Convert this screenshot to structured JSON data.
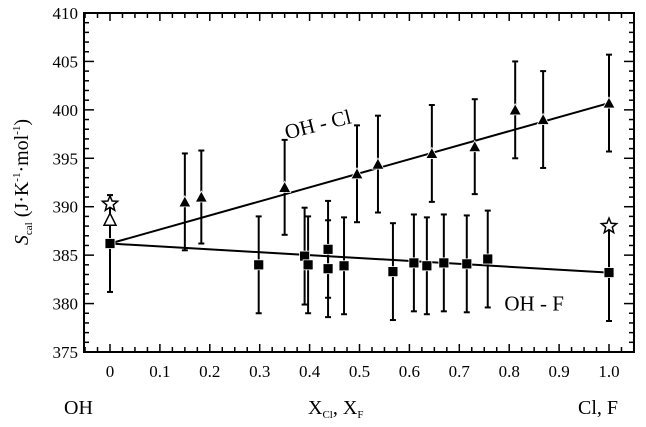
{
  "chart_data": {
    "type": "scatter",
    "title": "",
    "xlabel": "X_Cl, X_F",
    "xlabel_parts": {
      "main1": "X",
      "sub1": "Cl",
      "sep": ", ",
      "main2": "X",
      "sub2": "F"
    },
    "ylabel": "S_cal (J·K^-1·mol^-1)",
    "ylabel_parts": {
      "sym": "S",
      "sub": "cal",
      "pre": " (J·K",
      "sup1": "-1",
      "mid": "·mol",
      "sup2": "-1",
      "post": ")"
    },
    "xlim": [
      0,
      1.0
    ],
    "ylim": [
      375,
      410
    ],
    "x_ticks": [
      "0",
      "0.1",
      "0.2",
      "0.3",
      "0.4",
      "0.5",
      "0.6",
      "0.7",
      "0.8",
      "0.9",
      "1.0"
    ],
    "y_ticks": [
      "375",
      "380",
      "385",
      "390",
      "395",
      "400",
      "405",
      "410"
    ],
    "end_labels": {
      "left": "OH",
      "right": "Cl, F"
    },
    "grid": false,
    "series": [
      {
        "name": "OH - Cl",
        "marker": "filled-triangle",
        "points": [
          {
            "x": 0.15,
            "y": 390.5,
            "err": 5.0
          },
          {
            "x": 0.183,
            "y": 391.0,
            "err": 4.8
          },
          {
            "x": 0.35,
            "y": 392.0,
            "err": 4.9
          },
          {
            "x": 0.495,
            "y": 393.4,
            "err": 5.0
          },
          {
            "x": 0.537,
            "y": 394.4,
            "err": 5.0
          },
          {
            "x": 0.645,
            "y": 395.5,
            "err": 5.0
          },
          {
            "x": 0.731,
            "y": 396.2,
            "err": 4.9
          },
          {
            "x": 0.812,
            "y": 400.0,
            "err": 5.0
          },
          {
            "x": 0.868,
            "y": 399.0,
            "err": 5.0
          },
          {
            "x": 1.0,
            "y": 400.7,
            "err": 5.0
          }
        ],
        "fit": {
          "x": [
            0,
            1.0
          ],
          "y": [
            386.2,
            400.7
          ]
        }
      },
      {
        "name": "OH - F",
        "marker": "filled-square",
        "points": [
          {
            "x": 0.0,
            "y": 386.2,
            "err": 5.0
          },
          {
            "x": 0.298,
            "y": 384.0,
            "err": 5.0
          },
          {
            "x": 0.39,
            "y": 384.9,
            "err": 5.0
          },
          {
            "x": 0.397,
            "y": 384.0,
            "err": 5.0
          },
          {
            "x": 0.437,
            "y": 385.6,
            "err": 5.0
          },
          {
            "x": 0.437,
            "y": 383.6,
            "err": 5.0
          },
          {
            "x": 0.469,
            "y": 383.9,
            "err": 5.0
          },
          {
            "x": 0.567,
            "y": 383.3,
            "err": 5.0
          },
          {
            "x": 0.609,
            "y": 384.2,
            "err": 5.0
          },
          {
            "x": 0.635,
            "y": 383.9,
            "err": 5.0
          },
          {
            "x": 0.669,
            "y": 384.2,
            "err": 5.0
          },
          {
            "x": 0.715,
            "y": 384.1,
            "err": 5.0
          },
          {
            "x": 0.757,
            "y": 384.6,
            "err": 5.0
          },
          {
            "x": 1.0,
            "y": 383.2,
            "err": 5.0
          }
        ],
        "fit": {
          "x": [
            0,
            1.0
          ],
          "y": [
            386.2,
            383.2
          ]
        }
      },
      {
        "name": "reference-star",
        "marker": "open-star",
        "points": [
          {
            "x": 0.0,
            "y": 390.3
          },
          {
            "x": 1.0,
            "y": 388.0
          }
        ]
      },
      {
        "name": "reference-open-triangle",
        "marker": "open-triangle",
        "points": [
          {
            "x": 0.0,
            "y": 388.6
          }
        ]
      }
    ],
    "annotations": [
      {
        "text": "OH - Cl",
        "x": 0.42,
        "y": 397.8,
        "rotation": -14
      },
      {
        "text": "OH - F",
        "x": 0.85,
        "y": 379.3,
        "rotation": 0
      }
    ]
  },
  "colors": {
    "foreground": "#000000",
    "background": "#ffffff"
  }
}
